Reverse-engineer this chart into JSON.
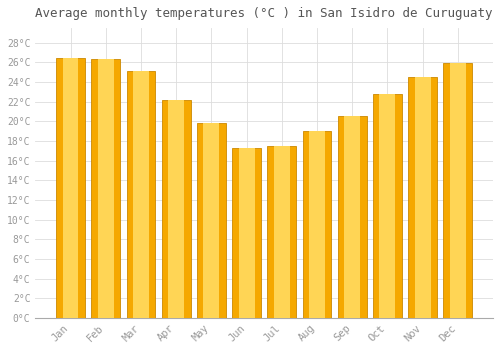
{
  "months": [
    "Jan",
    "Feb",
    "Mar",
    "Apr",
    "May",
    "Jun",
    "Jul",
    "Aug",
    "Sep",
    "Oct",
    "Nov",
    "Dec"
  ],
  "temperatures": [
    26.5,
    26.3,
    25.1,
    22.2,
    19.8,
    17.3,
    17.5,
    19.0,
    20.5,
    22.8,
    24.5,
    25.9
  ],
  "bar_color_outer": "#F5A800",
  "bar_color_inner": "#FFD555",
  "bar_edge_color": "#CC8800",
  "background_color": "#FFFFFF",
  "grid_color": "#DDDDDD",
  "title": "Average monthly temperatures (°C ) in San Isidro de Curuguaty",
  "title_fontsize": 9,
  "tick_label_color": "#999999",
  "ytick_labels": [
    "0°C",
    "2°C",
    "4°C",
    "6°C",
    "8°C",
    "10°C",
    "12°C",
    "14°C",
    "16°C",
    "18°C",
    "20°C",
    "22°C",
    "24°C",
    "26°C",
    "28°C"
  ],
  "ytick_values": [
    0,
    2,
    4,
    6,
    8,
    10,
    12,
    14,
    16,
    18,
    20,
    22,
    24,
    26,
    28
  ],
  "ylim": [
    0,
    29.5
  ],
  "font_family": "monospace",
  "title_color": "#555555",
  "bar_width": 0.82
}
